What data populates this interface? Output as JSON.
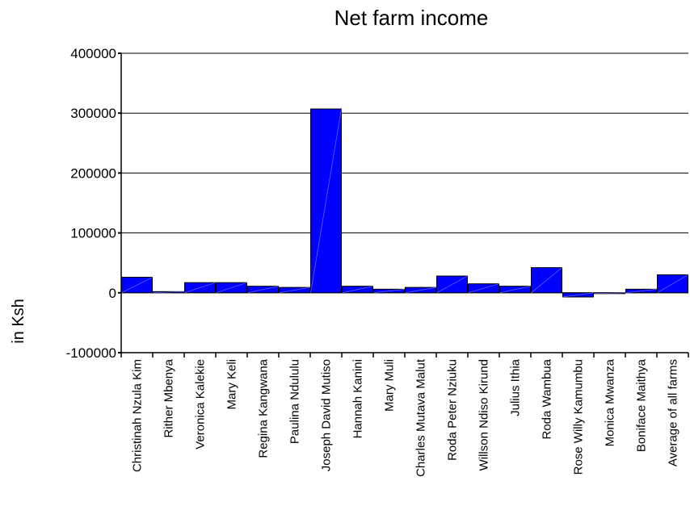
{
  "chart_data": {
    "type": "bar",
    "title": "Net farm income",
    "xlabel": "",
    "ylabel": "in Ksh",
    "ylim": [
      -100000,
      400000
    ],
    "yticks": [
      400000,
      300000,
      200000,
      100000,
      0,
      -100000
    ],
    "ytick_labels": [
      "400000",
      "300000",
      "200000",
      "100000",
      "0",
      "-100000"
    ],
    "grid": "horizontal major gridlines",
    "legend": "none",
    "bar_color": "#0000ff",
    "categories": [
      "Christinah Nzula Kim",
      "Rither Mbenya",
      "Veronica Kalekie",
      "Mary Keli",
      "Regina Kangwana",
      "Paulina Ndululu",
      "Joseph David Mutiso",
      "Hannah Kanini",
      "Mary Muli",
      "Charles Mutava Malut",
      "Roda Peter Nziuku",
      "Willson Ndiso Kirund",
      "Julius Ithia",
      "Roda Wambua",
      "Rose Willy Kamumbu",
      "Monica Mwanza",
      "Boniface Maithya",
      "Average of all farms"
    ],
    "values": [
      26000,
      2000,
      17000,
      17000,
      11000,
      9000,
      307000,
      11000,
      6000,
      9000,
      28000,
      15000,
      11000,
      42000,
      -7000,
      -500,
      6000,
      30000
    ]
  }
}
